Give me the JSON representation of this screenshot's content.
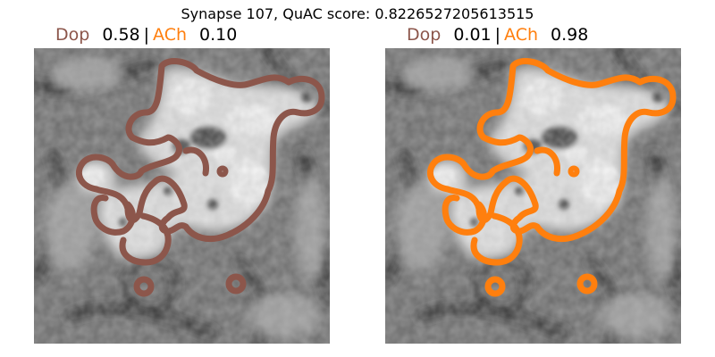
{
  "figure": {
    "title": "Synapse 107, QuAC score: 0.8226527205613515"
  },
  "colors": {
    "dop": "#8c564b",
    "ach": "#ff7f0e",
    "text": "#000000"
  },
  "panels": [
    {
      "dop_label": "Dop",
      "dop_value": "0.58",
      "separator": "|",
      "ach_label": "ACh",
      "ach_value": "0.10",
      "outline_color": "#8c564b"
    },
    {
      "dop_label": "Dop",
      "dop_value": "0.01",
      "separator": "|",
      "ach_label": "ACh",
      "ach_value": "0.98",
      "outline_color": "#ff7f0e"
    }
  ]
}
